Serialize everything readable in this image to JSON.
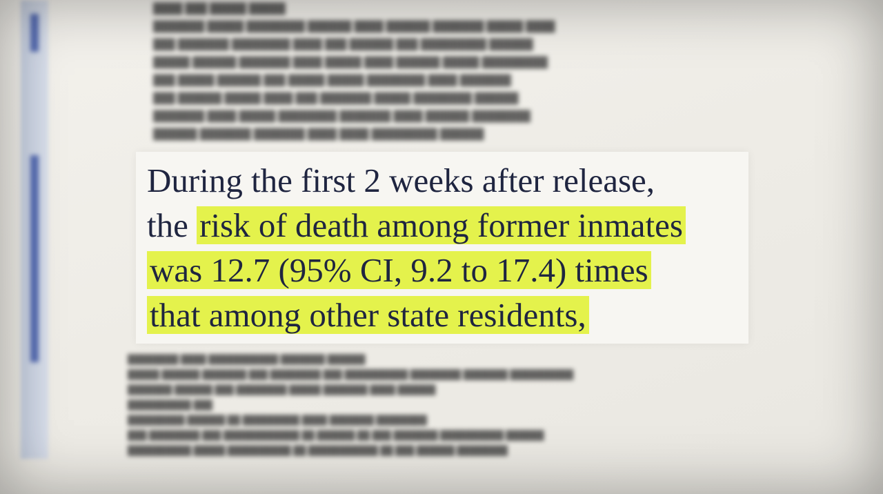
{
  "quote": {
    "line1": "During the first 2 weeks after release,",
    "line2_plain": "the",
    "line2_highlight": "risk of death among former inmates",
    "line3_highlight": "was 12.7 (95% CI, 9.2 to 17.4) times",
    "line4_highlight": "that among other state residents,"
  },
  "colors": {
    "highlight": "#e4f24c",
    "text": "#1f2540",
    "side_strip": "#3f58a8"
  }
}
